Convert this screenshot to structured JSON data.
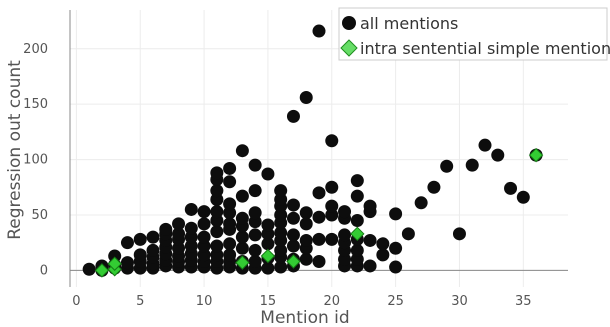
{
  "chart_data": {
    "type": "scatter",
    "xlabel": "Mention id",
    "ylabel": "Regression out count",
    "xlim": [
      -0.5,
      38.5
    ],
    "ylim": [
      -15,
      235
    ],
    "x_ticks": [
      0,
      5,
      10,
      15,
      20,
      25,
      30,
      35
    ],
    "y_ticks": [
      0,
      50,
      100,
      150,
      200
    ],
    "grid": true,
    "legend_position": "top-right",
    "series": [
      {
        "name": "all mentions",
        "marker": "circle",
        "color": "#0d0d0d",
        "points": [
          [
            1,
            1
          ],
          [
            2,
            0
          ],
          [
            2,
            4
          ],
          [
            3,
            2
          ],
          [
            3,
            5
          ],
          [
            3,
            13
          ],
          [
            4,
            2
          ],
          [
            4,
            7
          ],
          [
            4,
            25
          ],
          [
            5,
            2
          ],
          [
            5,
            8
          ],
          [
            5,
            14
          ],
          [
            5,
            28
          ],
          [
            6,
            2
          ],
          [
            6,
            6
          ],
          [
            6,
            12
          ],
          [
            6,
            18
          ],
          [
            6,
            30
          ],
          [
            7,
            4
          ],
          [
            7,
            9
          ],
          [
            7,
            15
          ],
          [
            7,
            21
          ],
          [
            7,
            27
          ],
          [
            7,
            33
          ],
          [
            7,
            37
          ],
          [
            8,
            3
          ],
          [
            8,
            8
          ],
          [
            8,
            13
          ],
          [
            8,
            20
          ],
          [
            8,
            28
          ],
          [
            8,
            33
          ],
          [
            8,
            42
          ],
          [
            9,
            3
          ],
          [
            9,
            9
          ],
          [
            9,
            15
          ],
          [
            9,
            22
          ],
          [
            9,
            30
          ],
          [
            9,
            38
          ],
          [
            9,
            55
          ],
          [
            10,
            3
          ],
          [
            10,
            8
          ],
          [
            10,
            14
          ],
          [
            10,
            22
          ],
          [
            10,
            30
          ],
          [
            10,
            42
          ],
          [
            10,
            53
          ],
          [
            11,
            2
          ],
          [
            11,
            8
          ],
          [
            11,
            14
          ],
          [
            11,
            22
          ],
          [
            11,
            35
          ],
          [
            11,
            45
          ],
          [
            11,
            53
          ],
          [
            11,
            64
          ],
          [
            11,
            72
          ],
          [
            11,
            82
          ],
          [
            11,
            88
          ],
          [
            12,
            3
          ],
          [
            12,
            8
          ],
          [
            12,
            14
          ],
          [
            12,
            24
          ],
          [
            12,
            37
          ],
          [
            12,
            42
          ],
          [
            12,
            52
          ],
          [
            12,
            60
          ],
          [
            12,
            80
          ],
          [
            12,
            92
          ],
          [
            13,
            2
          ],
          [
            13,
            8
          ],
          [
            13,
            20
          ],
          [
            13,
            30
          ],
          [
            13,
            40
          ],
          [
            13,
            47
          ],
          [
            13,
            67
          ],
          [
            13,
            108
          ],
          [
            14,
            2
          ],
          [
            14,
            8
          ],
          [
            14,
            18
          ],
          [
            14,
            32
          ],
          [
            14,
            44
          ],
          [
            14,
            52
          ],
          [
            14,
            72
          ],
          [
            14,
            95
          ],
          [
            15,
            2
          ],
          [
            15,
            11
          ],
          [
            15,
            24
          ],
          [
            15,
            33
          ],
          [
            15,
            41
          ],
          [
            15,
            87
          ],
          [
            16,
            3
          ],
          [
            16,
            12
          ],
          [
            16,
            18
          ],
          [
            16,
            27
          ],
          [
            16,
            34
          ],
          [
            16,
            43
          ],
          [
            16,
            50
          ],
          [
            16,
            58
          ],
          [
            16,
            64
          ],
          [
            16,
            72
          ],
          [
            17,
            4
          ],
          [
            17,
            10
          ],
          [
            17,
            22
          ],
          [
            17,
            32
          ],
          [
            17,
            47
          ],
          [
            17,
            59
          ],
          [
            17,
            139
          ],
          [
            18,
            10
          ],
          [
            18,
            20
          ],
          [
            18,
            27
          ],
          [
            18,
            42
          ],
          [
            18,
            52
          ],
          [
            18,
            156
          ],
          [
            19,
            8
          ],
          [
            19,
            28
          ],
          [
            19,
            48
          ],
          [
            19,
            70
          ],
          [
            19,
            216
          ],
          [
            20,
            28
          ],
          [
            20,
            50
          ],
          [
            20,
            58
          ],
          [
            20,
            75
          ],
          [
            20,
            117
          ],
          [
            21,
            4
          ],
          [
            21,
            10
          ],
          [
            21,
            18
          ],
          [
            21,
            25
          ],
          [
            21,
            32
          ],
          [
            21,
            47
          ],
          [
            21,
            53
          ],
          [
            22,
            4
          ],
          [
            22,
            10
          ],
          [
            22,
            18
          ],
          [
            22,
            28
          ],
          [
            22,
            45
          ],
          [
            22,
            67
          ],
          [
            22,
            81
          ],
          [
            23,
            4
          ],
          [
            23,
            27
          ],
          [
            23,
            53
          ],
          [
            23,
            58
          ],
          [
            24,
            14
          ],
          [
            24,
            24
          ],
          [
            25,
            3
          ],
          [
            25,
            20
          ],
          [
            25,
            51
          ],
          [
            26,
            33
          ],
          [
            27,
            61
          ],
          [
            28,
            75
          ],
          [
            29,
            94
          ],
          [
            30,
            33
          ],
          [
            31,
            95
          ],
          [
            32,
            113
          ],
          [
            33,
            104
          ],
          [
            34,
            74
          ],
          [
            35,
            66
          ],
          [
            36,
            104
          ]
        ]
      },
      {
        "name": "intra sentential simple mentions",
        "marker": "diamond",
        "color": "#33cc33",
        "points": [
          [
            2,
            0
          ],
          [
            3,
            1
          ],
          [
            3,
            6
          ],
          [
            13,
            7
          ],
          [
            15,
            13
          ],
          [
            17,
            8
          ],
          [
            22,
            33
          ],
          [
            36,
            104
          ]
        ]
      }
    ]
  }
}
